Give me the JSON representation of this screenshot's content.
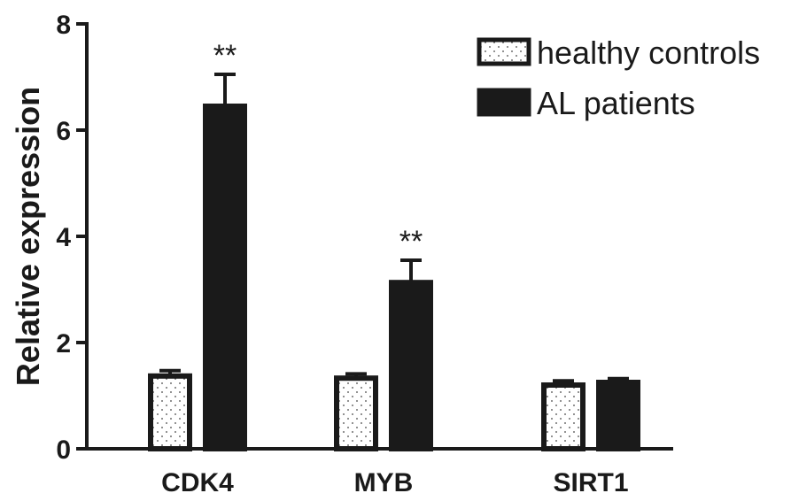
{
  "chart_data": {
    "type": "bar",
    "categories": [
      "CDK4",
      "MYB",
      "SIRT1"
    ],
    "series": [
      {
        "name": "healthy controls",
        "values": [
          1.37,
          1.33,
          1.2
        ],
        "errors": [
          0.1,
          0.08,
          0.08
        ],
        "color": "#ffffff",
        "pattern": "dotted"
      },
      {
        "name": "AL patients",
        "values": [
          6.45,
          3.13,
          1.25
        ],
        "errors": [
          0.6,
          0.42,
          0.07
        ],
        "color": "#1a1a1a",
        "pattern": "solid"
      }
    ],
    "significance": [
      "**",
      "**",
      ""
    ],
    "ylabel": "Relative expression",
    "xlabel": "",
    "ylim": [
      0,
      8
    ],
    "yticks": [
      "0",
      "2",
      "4",
      "6",
      "8"
    ],
    "legend_position": "top-right",
    "grid": false
  }
}
